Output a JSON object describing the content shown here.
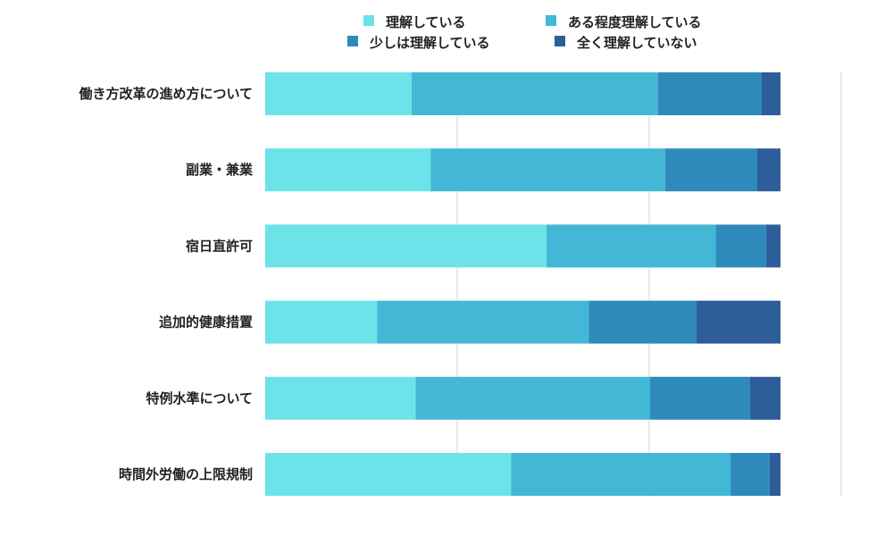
{
  "chart_data": {
    "type": "bar",
    "orientation": "horizontal",
    "stacked": true,
    "percent": true,
    "categories": [
      "働き方改革の進め方について",
      "副業・兼業",
      "宿日直許可",
      "追加的健康措置",
      "特例水準について",
      "時間外労働の上限規制"
    ],
    "series": [
      {
        "name": "理解している",
        "color": "#6be3e8",
        "values": [
          28.4,
          32.1,
          54.6,
          21.7,
          29.2,
          47.7
        ]
      },
      {
        "name": "ある程度理解している",
        "color": "#42b8d6",
        "values": [
          47.8,
          45.5,
          32.8,
          41.1,
          45.5,
          42.6
        ]
      },
      {
        "name": "少しは理解している",
        "color": "#2f8abc",
        "values": [
          20.1,
          17.9,
          9.8,
          20.9,
          19.4,
          7.6
        ]
      },
      {
        "name": "全く理解していない",
        "color": "#2e5e99",
        "values": [
          3.7,
          4.5,
          2.8,
          16.3,
          5.9,
          2.1
        ]
      }
    ],
    "xlim": [
      0,
      100
    ],
    "grid": true,
    "legend_position": "top"
  }
}
